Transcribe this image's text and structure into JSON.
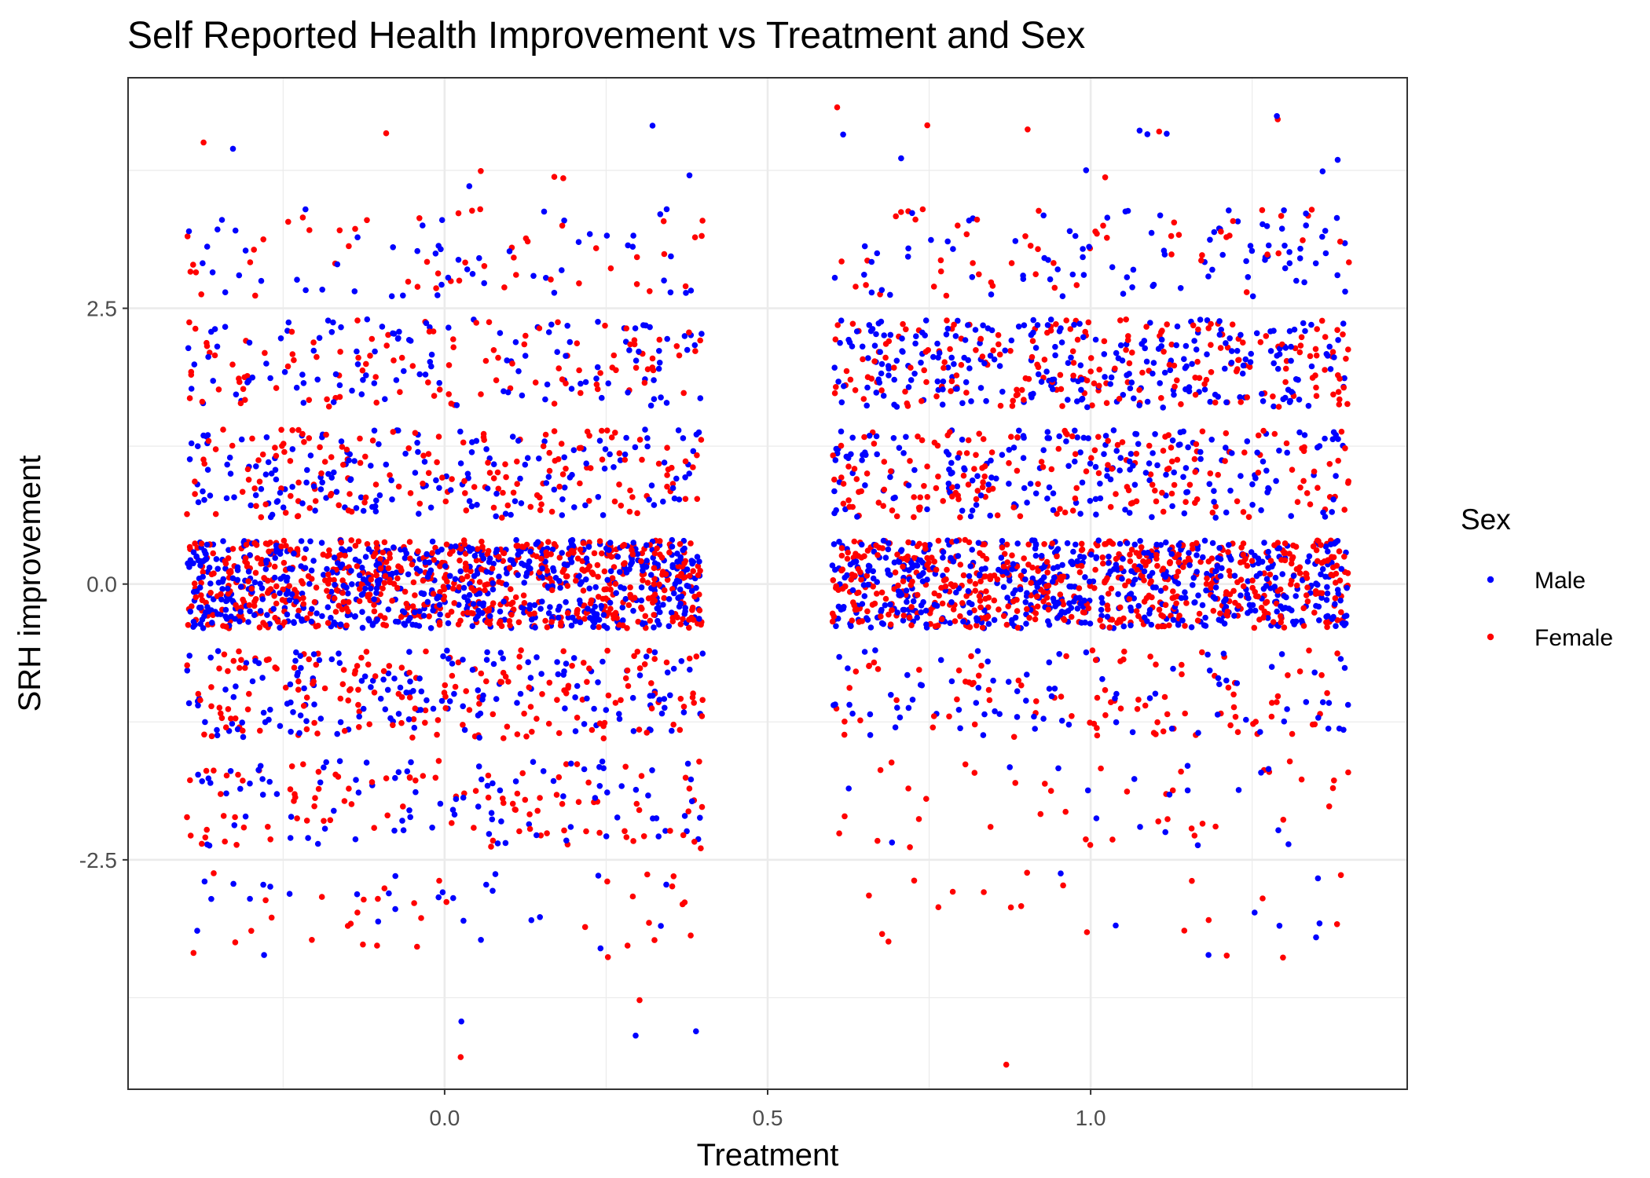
{
  "chart_data": {
    "type": "scatter",
    "title": "Self Reported Health Improvement vs Treatment and Sex",
    "xlabel": "Treatment",
    "ylabel": "SRH improvement",
    "xlim": [
      -0.49,
      1.49
    ],
    "ylim": [
      -4.58,
      4.59
    ],
    "x_ticks": [
      0.0,
      0.5,
      1.0
    ],
    "x_tick_labels": [
      "0.0",
      "0.5",
      "1.0"
    ],
    "y_ticks": [
      -2.5,
      0.0,
      2.5
    ],
    "y_tick_labels": [
      "-2.5",
      "0.0",
      "2.5"
    ],
    "grid": true,
    "legend": {
      "title": "Sex",
      "position": "right",
      "entries": [
        {
          "name": "Male",
          "color": "#0000ff"
        },
        {
          "name": "Female",
          "color": "#ff0000"
        }
      ]
    },
    "jitter": {
      "x_width": 0.4,
      "y_width": 0.4
    },
    "levels": [
      -4,
      -3,
      -2,
      -1,
      0,
      1,
      2,
      3,
      4
    ],
    "series": [
      {
        "name": "Male",
        "color": "#0000ff",
        "counts_treatment_0": [
          3,
          28,
          95,
          165,
          640,
          170,
          120,
          55,
          4
        ],
        "counts_treatment_1": [
          0,
          8,
          18,
          85,
          560,
          200,
          260,
          90,
          9
        ]
      },
      {
        "name": "Female",
        "color": "#ff0000",
        "counts_treatment_0": [
          2,
          34,
          105,
          175,
          640,
          165,
          110,
          50,
          5
        ],
        "counts_treatment_1": [
          1,
          20,
          40,
          95,
          560,
          180,
          210,
          55,
          6
        ]
      }
    ]
  }
}
